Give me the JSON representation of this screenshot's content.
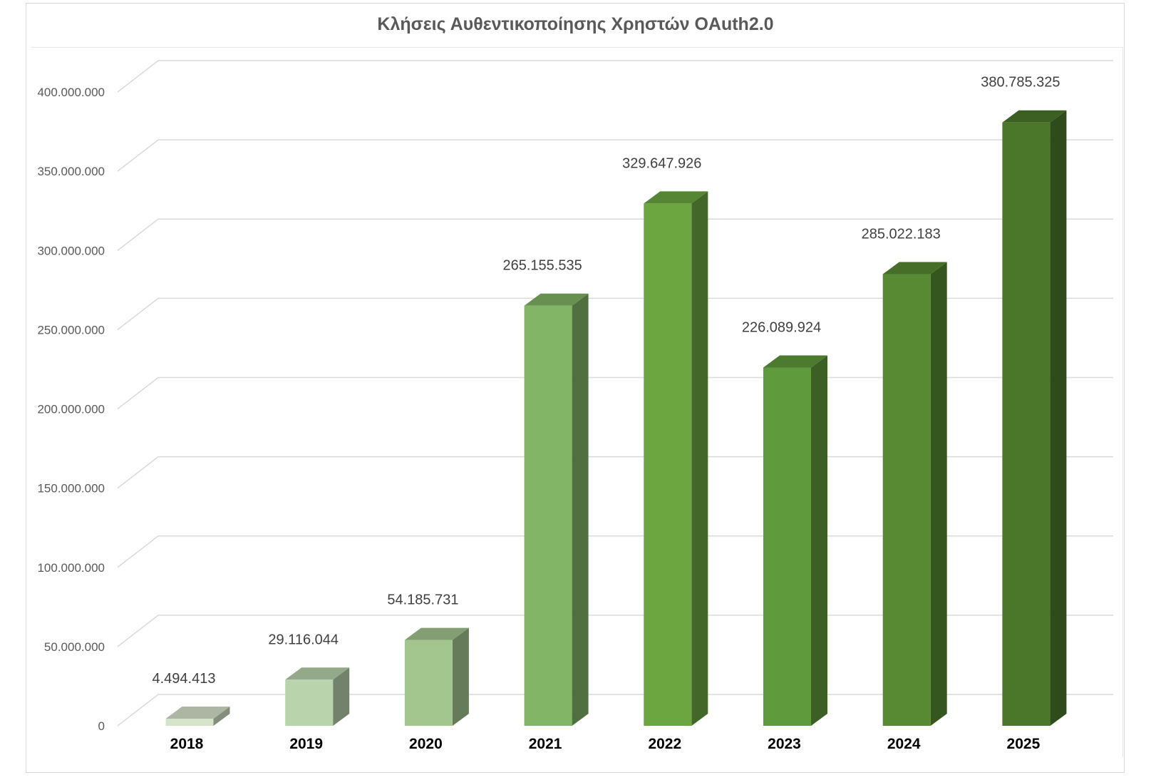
{
  "chart_data": {
    "type": "bar",
    "title": "Κλήσεις Αυθεντικοποίησης Χρηστών OAuth2.0",
    "xlabel": "",
    "ylabel": "",
    "categories": [
      "2018",
      "2019",
      "2020",
      "2021",
      "2022",
      "2023",
      "2024",
      "2025"
    ],
    "values": [
      4494413,
      29116044,
      54185731,
      265155535,
      329647926,
      226089924,
      285022183,
      380785325
    ],
    "data_labels": [
      "4.494.413",
      "29.116.044",
      "54.185.731",
      "265.155.535",
      "329.647.926",
      "226.089.924",
      "285.022.183",
      "380.785.325"
    ],
    "ylim": [
      0,
      400000000
    ],
    "yticks": [
      0,
      50000000,
      100000000,
      150000000,
      200000000,
      250000000,
      300000000,
      350000000,
      400000000
    ],
    "ytick_labels": [
      "0",
      "50.000.000",
      "100.000.000",
      "150.000.000",
      "200.000.000",
      "250.000.000",
      "300.000.000",
      "350.000.000",
      "400.000.000"
    ],
    "grid": true,
    "legend": "none",
    "style": "3d-column",
    "bar_colors": [
      "#d7e4cc",
      "#b9d3ad",
      "#a3c68f",
      "#82b565",
      "#6ca641",
      "#5f9a3c",
      "#578a33",
      "#4b772b"
    ]
  }
}
